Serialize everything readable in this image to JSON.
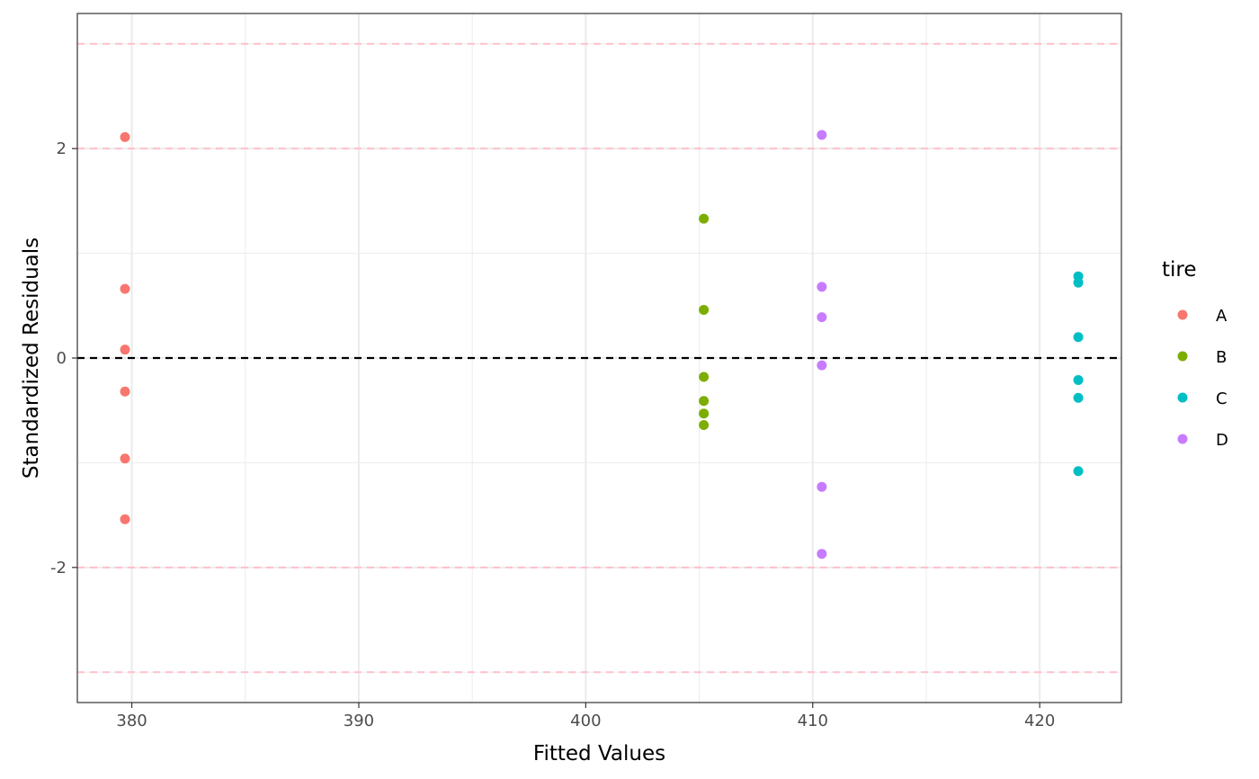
{
  "chart_data": {
    "type": "scatter",
    "title": "",
    "xlabel": "Fitted Values",
    "ylabel": "Standardized Residuals",
    "xlim": [
      377.6,
      423.6
    ],
    "ylim": [
      -3.29,
      3.29
    ],
    "x_ticks": [
      380,
      390,
      400,
      410,
      420
    ],
    "x_tick_labels": [
      "380",
      "390",
      "400",
      "410",
      "420"
    ],
    "y_ticks": [
      -2,
      0,
      2
    ],
    "y_tick_labels": [
      "-2",
      "0",
      "2"
    ],
    "grid": true,
    "reference_lines": [
      {
        "y": 0,
        "color": "#000000",
        "style": "dashed"
      },
      {
        "y": 2,
        "color": "#ffc0cb",
        "style": "dashed"
      },
      {
        "y": -2,
        "color": "#ffc0cb",
        "style": "dashed"
      },
      {
        "y": 3,
        "color": "#ffc0cb",
        "style": "dashed"
      },
      {
        "y": -3,
        "color": "#ffc0cb",
        "style": "dashed"
      }
    ],
    "legend": {
      "title": "tire",
      "position": "right"
    },
    "series": [
      {
        "name": "A",
        "color": "#F8766D",
        "points": [
          [
            379.7,
            2.11
          ],
          [
            379.7,
            0.66
          ],
          [
            379.7,
            0.08
          ],
          [
            379.7,
            -0.32
          ],
          [
            379.7,
            -0.96
          ],
          [
            379.7,
            -1.54
          ]
        ]
      },
      {
        "name": "B",
        "color": "#7CAE00",
        "points": [
          [
            405.2,
            1.33
          ],
          [
            405.2,
            0.46
          ],
          [
            405.2,
            -0.18
          ],
          [
            405.2,
            -0.41
          ],
          [
            405.2,
            -0.53
          ],
          [
            405.2,
            -0.64
          ]
        ]
      },
      {
        "name": "C",
        "color": "#00BFC4",
        "points": [
          [
            421.7,
            0.78
          ],
          [
            421.7,
            0.72
          ],
          [
            421.7,
            0.2
          ],
          [
            421.7,
            -0.21
          ],
          [
            421.7,
            -0.38
          ],
          [
            421.7,
            -1.08
          ]
        ]
      },
      {
        "name": "D",
        "color": "#C77CFF",
        "points": [
          [
            410.4,
            2.13
          ],
          [
            410.4,
            0.68
          ],
          [
            410.4,
            0.39
          ],
          [
            410.4,
            -0.07
          ],
          [
            410.4,
            -1.23
          ],
          [
            410.4,
            -1.87
          ]
        ]
      }
    ]
  }
}
